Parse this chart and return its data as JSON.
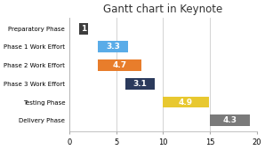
{
  "title": "Gantt chart in Keynote",
  "categories": [
    "Preparatory Phase",
    "Phase 1 Work Effort",
    "Phase 2 Work Effort",
    "Phase 3 Work Effort",
    "Testing Phase",
    "Delivery Phase"
  ],
  "bar_starts": [
    1,
    3,
    3,
    6,
    10,
    15
  ],
  "bar_widths": [
    1,
    3.3,
    4.7,
    3.1,
    4.9,
    4.3
  ],
  "bar_labels": [
    "1",
    "3.3",
    "4.7",
    "3.1",
    "4.9",
    "4.3"
  ],
  "bar_colors": [
    "#3d3d3d",
    "#5aace8",
    "#e87d2b",
    "#2b3a5c",
    "#e8c830",
    "#7a7a7a"
  ],
  "label_colors": [
    "white",
    "white",
    "white",
    "white",
    "white",
    "white"
  ],
  "xlim": [
    0,
    20
  ],
  "xticks": [
    0,
    5,
    10,
    15,
    20
  ],
  "background_color": "#ffffff",
  "plot_bg_color": "#ffffff",
  "title_fontsize": 8.5,
  "bar_height": 0.62,
  "label_fontsize": 6.5,
  "ytick_fontsize": 5.0,
  "xtick_fontsize": 6.0
}
